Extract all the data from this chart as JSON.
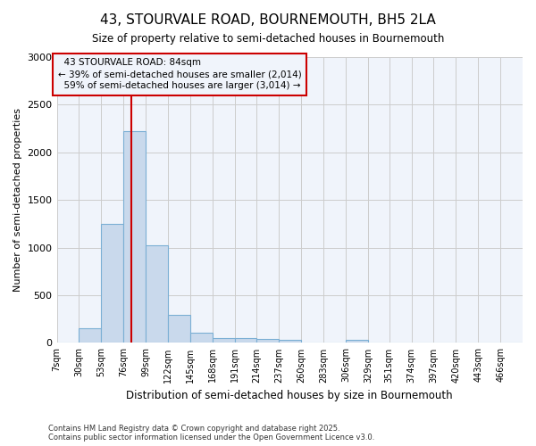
{
  "title": "43, STOURVALE ROAD, BOURNEMOUTH, BH5 2LA",
  "subtitle": "Size of property relative to semi-detached houses in Bournemouth",
  "xlabel": "Distribution of semi-detached houses by size in Bournemouth",
  "ylabel": "Number of semi-detached properties",
  "bin_labels": [
    "7sqm",
    "30sqm",
    "53sqm",
    "76sqm",
    "99sqm",
    "122sqm",
    "145sqm",
    "168sqm",
    "191sqm",
    "214sqm",
    "237sqm",
    "260sqm",
    "283sqm",
    "306sqm",
    "329sqm",
    "351sqm",
    "374sqm",
    "397sqm",
    "420sqm",
    "443sqm",
    "466sqm"
  ],
  "bar_heights": [
    0,
    150,
    1250,
    2225,
    1025,
    295,
    110,
    55,
    55,
    38,
    28,
    5,
    0,
    28,
    0,
    0,
    0,
    0,
    0,
    0,
    0
  ],
  "bar_color": "#c9d9ec",
  "bar_edge_color": "#7bafd4",
  "property_label": "43 STOURVALE ROAD: 84sqm",
  "smaller_pct": "39%",
  "smaller_count": "2,014",
  "larger_pct": "59%",
  "larger_count": "3,014",
  "vline_x": 84,
  "vline_color": "#cc0000",
  "annotation_box_color": "#cc0000",
  "background_color": "#ffffff",
  "plot_bg_color": "#f0f4fb",
  "ylim": [
    0,
    3000
  ],
  "yticks": [
    0,
    500,
    1000,
    1500,
    2000,
    2500,
    3000
  ],
  "footer": "Contains HM Land Registry data © Crown copyright and database right 2025.\nContains public sector information licensed under the Open Government Licence v3.0.",
  "bin_edges": [
    7,
    30,
    53,
    76,
    99,
    122,
    145,
    168,
    191,
    214,
    237,
    260,
    283,
    306,
    329,
    351,
    374,
    397,
    420,
    443,
    466,
    489
  ]
}
